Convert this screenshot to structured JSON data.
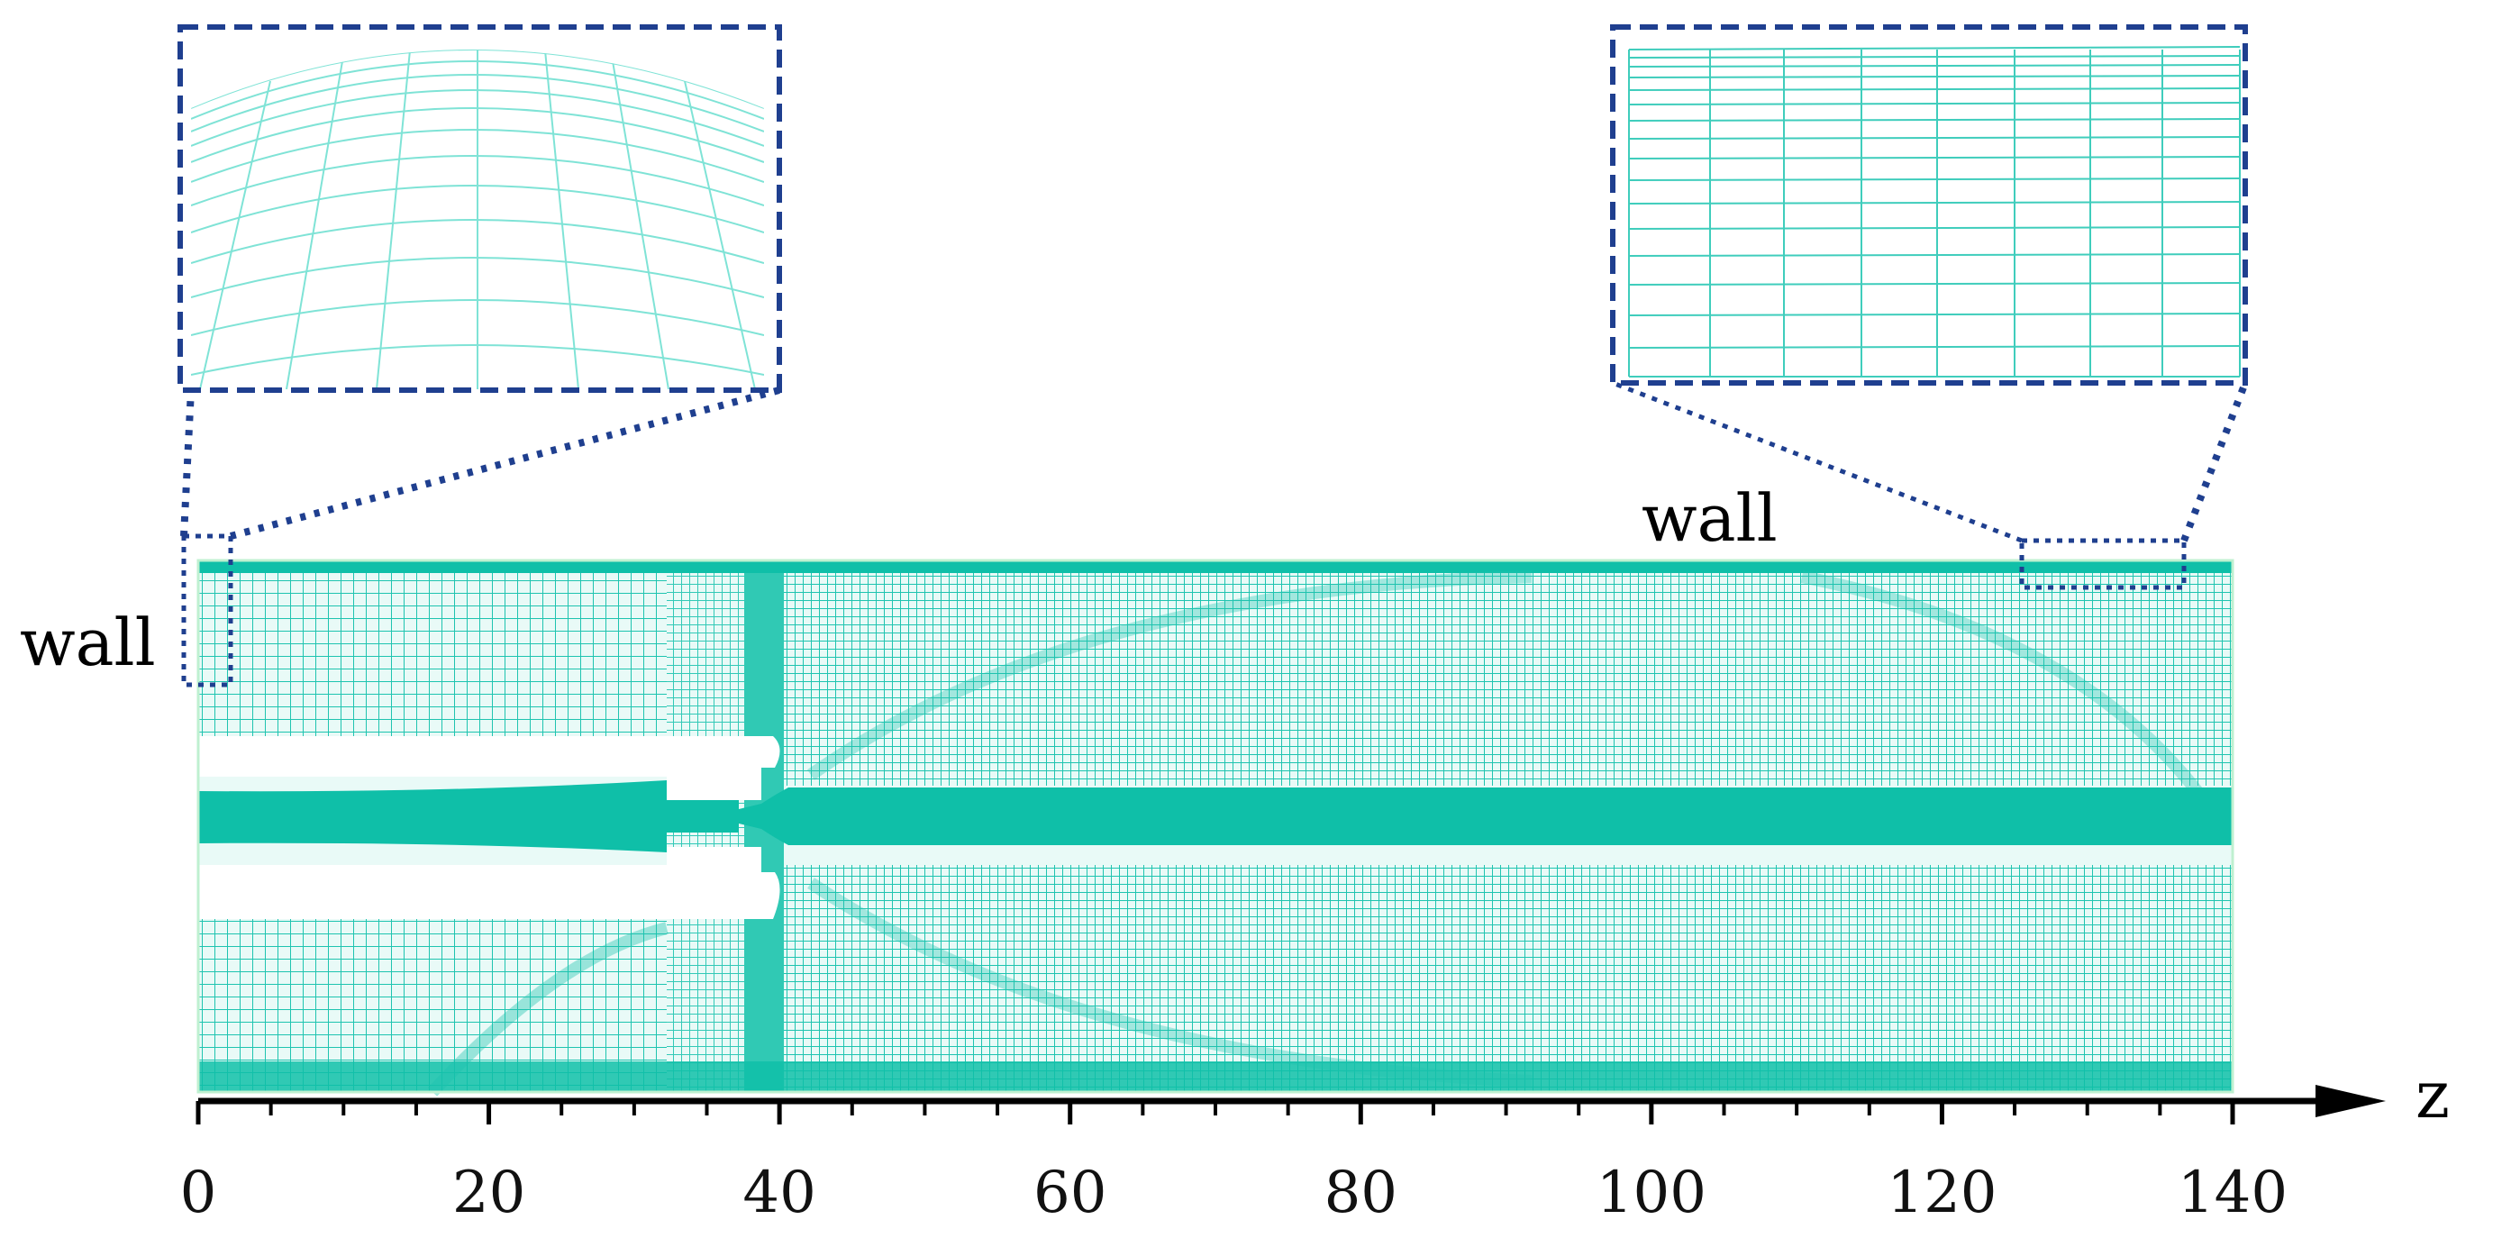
{
  "labels": {
    "wall_left": "wall",
    "wall_top": "wall",
    "axis_name": "z"
  },
  "axis": {
    "ticks": [
      0,
      20,
      40,
      60,
      80,
      100,
      120,
      140
    ],
    "range": [
      0,
      140
    ],
    "minor_step": 5
  },
  "colors": {
    "mesh": "#1fc4b0",
    "mesh_dense": "#0fbfa8",
    "mesh_light": "#7fe3d6",
    "callout_box": "#1f3f8f",
    "axis": "#000000"
  }
}
